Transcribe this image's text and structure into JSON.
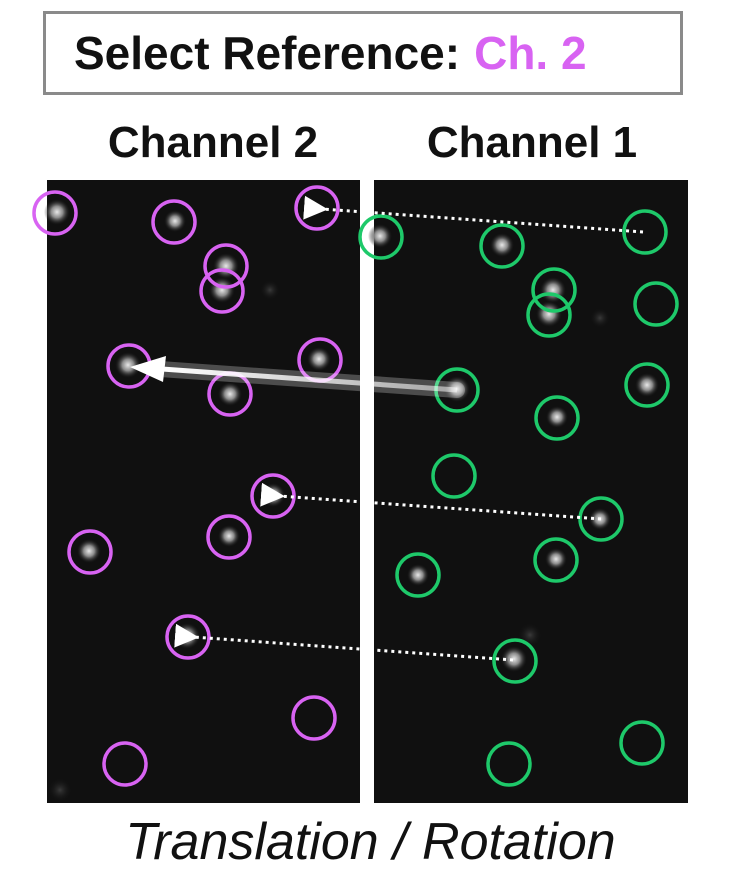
{
  "header": {
    "label": "Select Reference:",
    "value": "Ch. 2",
    "value_color": "#d863f2"
  },
  "panels": [
    {
      "title": "Channel 2",
      "marker_color": "#d863f2"
    },
    {
      "title": "Channel 1",
      "marker_color": "#1ec96a"
    }
  ],
  "caption": "Translation / Rotation"
}
